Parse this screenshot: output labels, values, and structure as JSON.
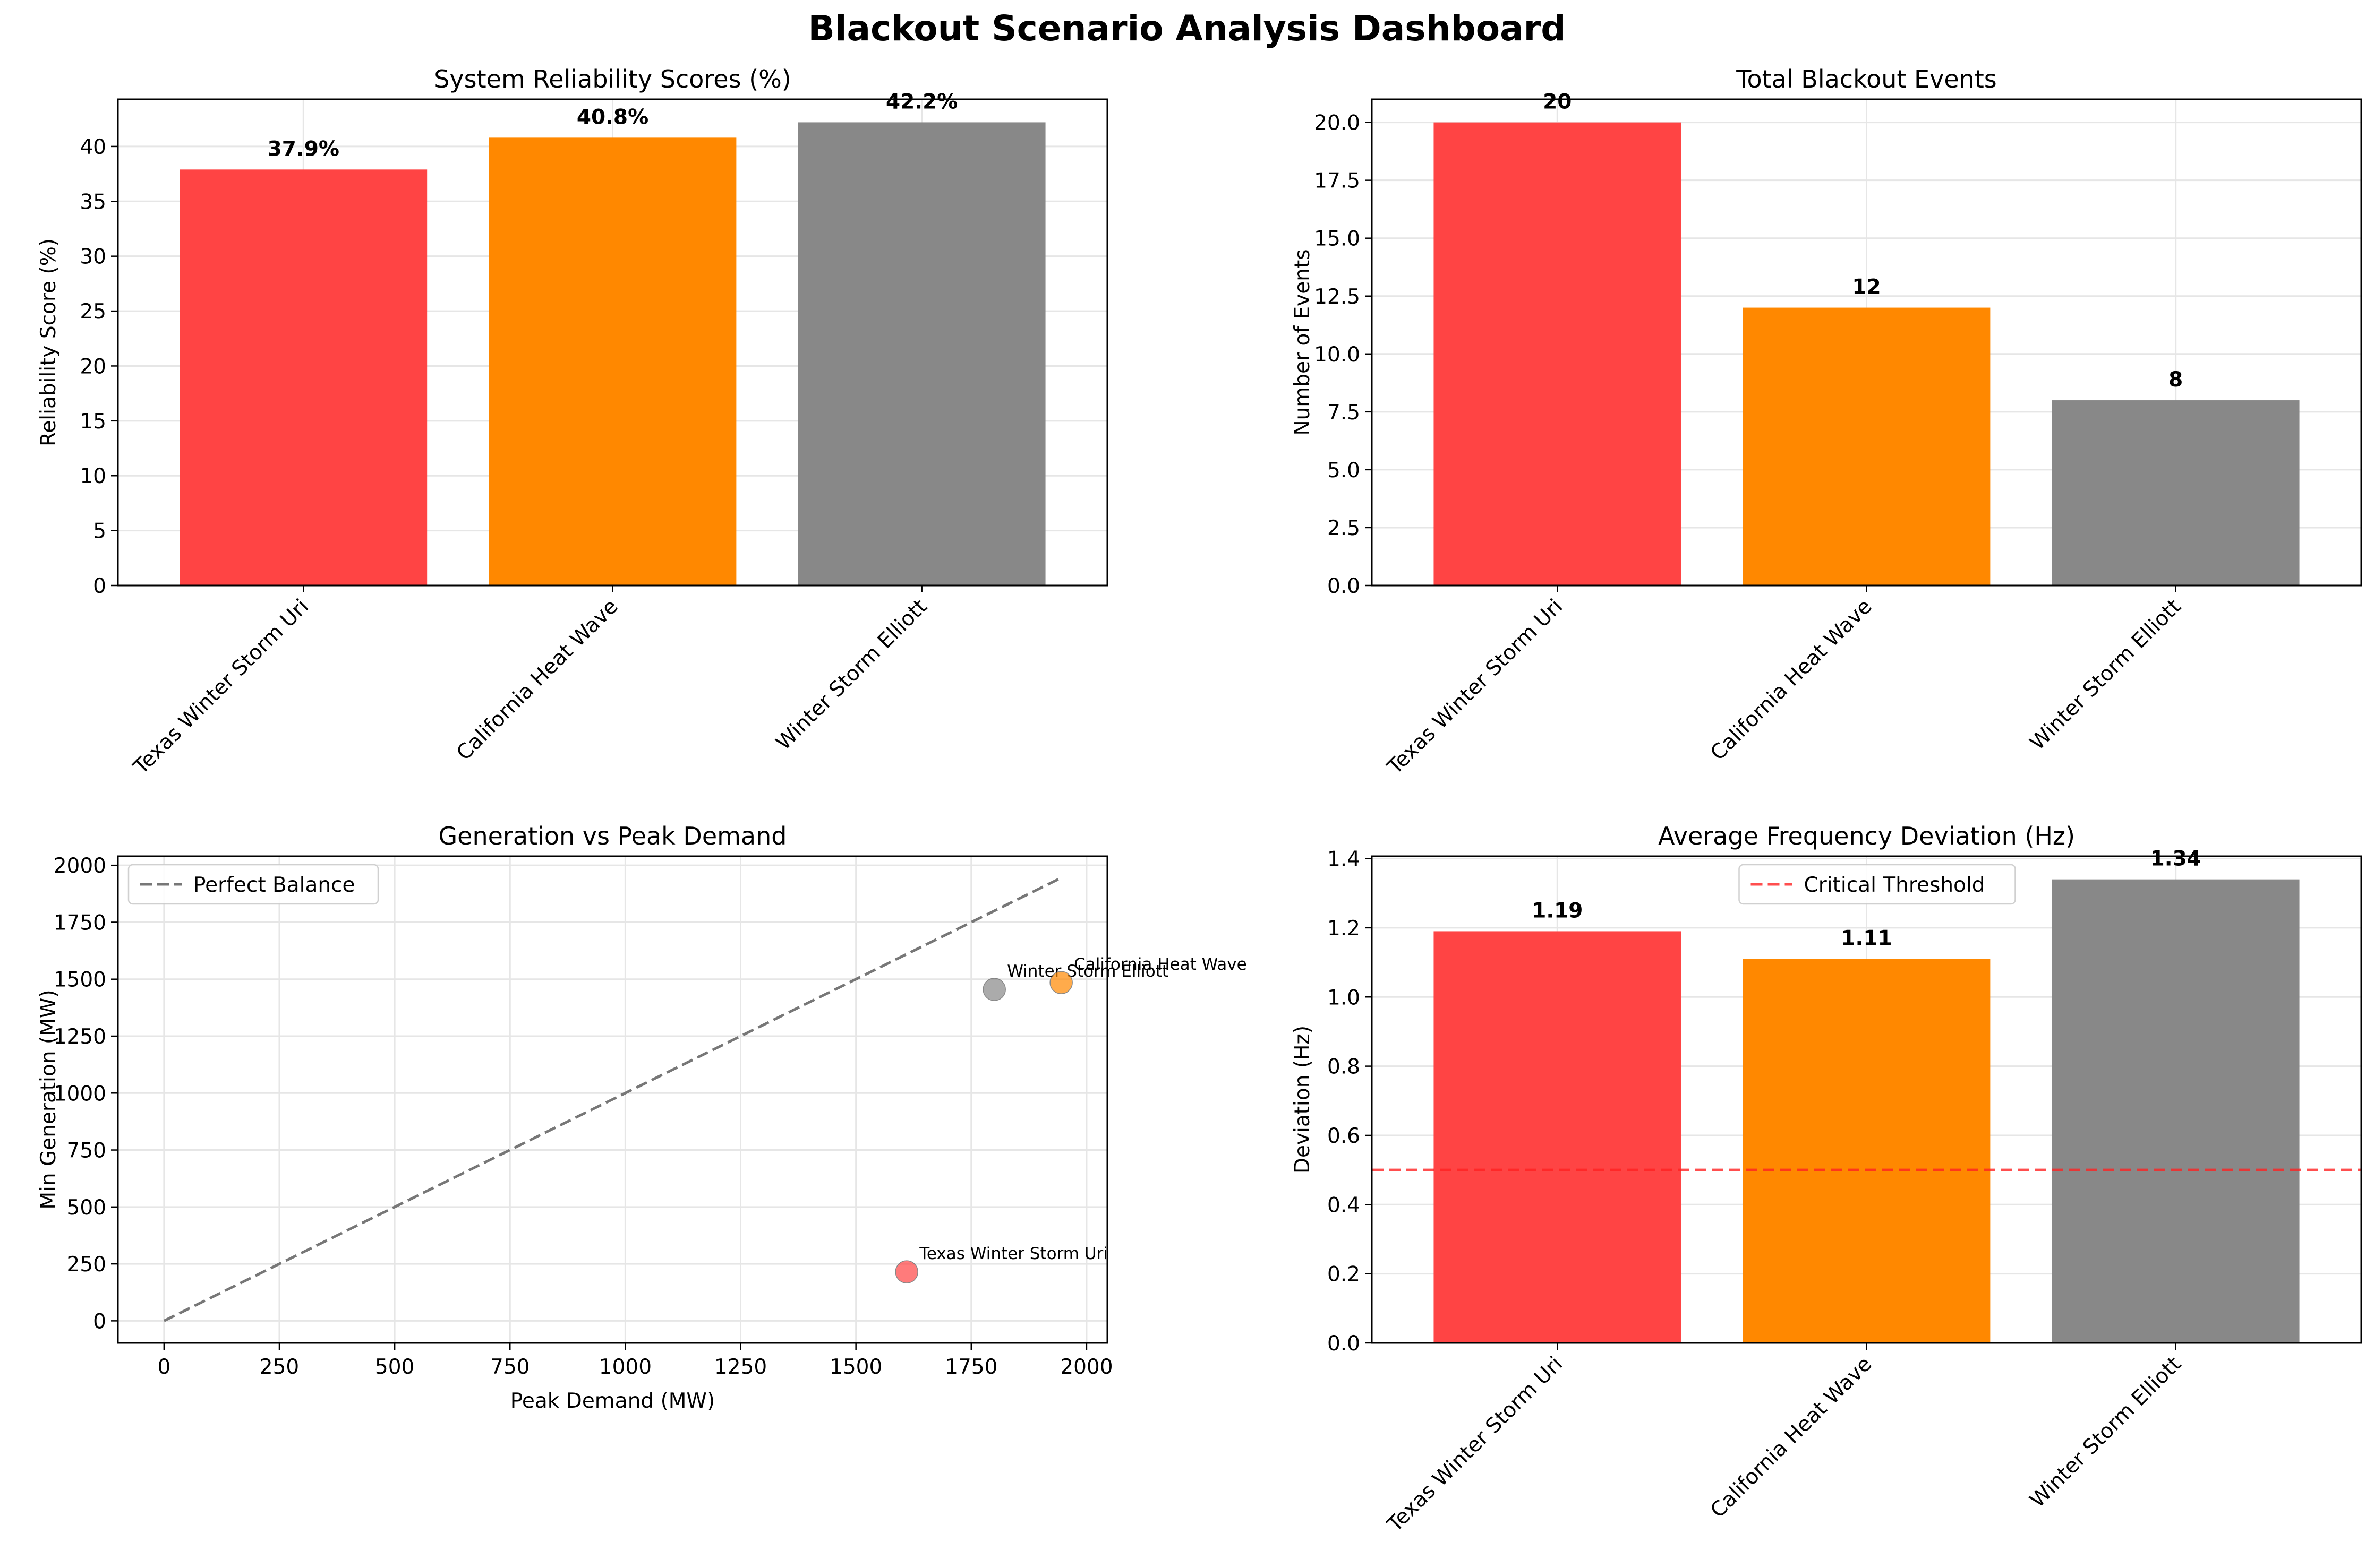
{
  "figure": {
    "title": "Blackout Scenario Analysis Dashboard"
  },
  "colors": {
    "texas": "#ff4444",
    "california": "#ff8800",
    "elliott": "#888888",
    "diagonal": "#777777",
    "threshold": "#ff2222",
    "grid": "#e6e6e6"
  },
  "chart_data": [
    {
      "id": "reliability",
      "type": "bar",
      "title": "System Reliability Scores (%)",
      "xlabel": "",
      "ylabel": "Reliability Score (%)",
      "categories": [
        "Texas Winter Storm Uri",
        "California Heat Wave",
        "Winter Storm Elliott"
      ],
      "values": [
        37.9,
        40.8,
        42.2
      ],
      "value_labels": [
        "37.9%",
        "40.8%",
        "42.2%"
      ],
      "ylim": [
        0,
        44.3
      ],
      "yticks": [
        0,
        5,
        10,
        15,
        20,
        25,
        30,
        35,
        40
      ],
      "ytick_labels": [
        "0",
        "5",
        "10",
        "15",
        "20",
        "25",
        "30",
        "35",
        "40"
      ],
      "grid": true
    },
    {
      "id": "events",
      "type": "bar",
      "title": "Total Blackout Events",
      "xlabel": "",
      "ylabel": "Number of Events",
      "categories": [
        "Texas Winter Storm Uri",
        "California Heat Wave",
        "Winter Storm Elliott"
      ],
      "values": [
        20,
        12,
        8
      ],
      "value_labels": [
        "20",
        "12",
        "8"
      ],
      "ylim": [
        0,
        21
      ],
      "yticks": [
        0,
        2.5,
        5,
        7.5,
        10,
        12.5,
        15,
        17.5,
        20
      ],
      "ytick_labels": [
        "0.0",
        "2.5",
        "5.0",
        "7.5",
        "10.0",
        "12.5",
        "15.0",
        "17.5",
        "20.0"
      ],
      "grid": true
    },
    {
      "id": "generation",
      "type": "scatter",
      "title": "Generation vs Peak Demand",
      "xlabel": "Peak Demand (MW)",
      "ylabel": "Min Generation (MW)",
      "points": [
        {
          "label": "Texas Winter Storm Uri",
          "x": 1610,
          "y": 215
        },
        {
          "label": "Winter Storm Elliott",
          "x": 1800,
          "y": 1455
        },
        {
          "label": "California Heat Wave",
          "x": 1945,
          "y": 1485
        }
      ],
      "reference_line": {
        "name": "Perfect Balance",
        "x": [
          0,
          1945
        ],
        "y": [
          0,
          1945
        ]
      },
      "xlim": [
        -100,
        2045
      ],
      "ylim": [
        -97,
        2040
      ],
      "xticks": [
        0,
        250,
        500,
        750,
        1000,
        1250,
        1500,
        1750,
        2000
      ],
      "xtick_labels": [
        "0",
        "250",
        "500",
        "750",
        "1000",
        "1250",
        "1500",
        "1750",
        "2000"
      ],
      "yticks": [
        0,
        250,
        500,
        750,
        1000,
        1250,
        1500,
        1750,
        2000
      ],
      "ytick_labels": [
        "0",
        "250",
        "500",
        "750",
        "1000",
        "1250",
        "1500",
        "1750",
        "2000"
      ],
      "legend": "upper-left",
      "grid": true
    },
    {
      "id": "frequency",
      "type": "bar",
      "title": "Average Frequency Deviation (Hz)",
      "xlabel": "",
      "ylabel": "Deviation (Hz)",
      "categories": [
        "Texas Winter Storm Uri",
        "California Heat Wave",
        "Winter Storm Elliott"
      ],
      "values": [
        1.19,
        1.11,
        1.34
      ],
      "value_labels": [
        "1.19",
        "1.11",
        "1.34"
      ],
      "ylim": [
        0,
        1.407
      ],
      "yticks": [
        0,
        0.2,
        0.4,
        0.6,
        0.8,
        1.0,
        1.2,
        1.4
      ],
      "ytick_labels": [
        "0.0",
        "0.2",
        "0.4",
        "0.6",
        "0.8",
        "1.0",
        "1.2",
        "1.4"
      ],
      "threshold": {
        "name": "Critical Threshold",
        "value": 0.5
      },
      "legend": "upper-center",
      "grid": true
    }
  ]
}
